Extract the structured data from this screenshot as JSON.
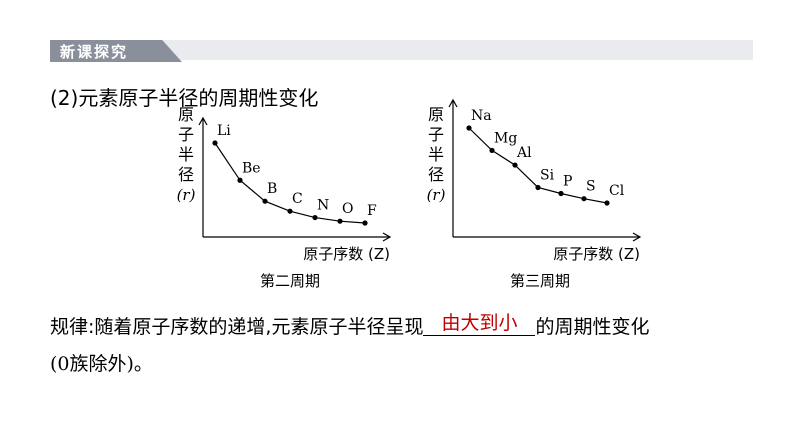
{
  "header": {
    "tag": "新课探究"
  },
  "subtitle": "(2)元素原子半径的周期性变化",
  "chart_data": [
    {
      "type": "line",
      "caption": "第二周期",
      "ylabel_chars": [
        "原",
        "子",
        "半",
        "径"
      ],
      "ylabel_var": "(r)",
      "xlabel": "原子序数 (Z)",
      "categories": [
        "Li",
        "Be",
        "B",
        "C",
        "N",
        "O",
        "F"
      ],
      "values": [
        152,
        111,
        88,
        77,
        70,
        66,
        64
      ],
      "ylim": [
        45,
        165
      ],
      "grid": false
    },
    {
      "type": "line",
      "caption": "第三周期",
      "ylabel_chars": [
        "原",
        "子",
        "半",
        "径"
      ],
      "ylabel_var": "(r)",
      "xlabel": "原子序数 (Z)",
      "categories": [
        "Na",
        "Mg",
        "Al",
        "Si",
        "P",
        "S",
        "Cl"
      ],
      "values": [
        186,
        160,
        143,
        117,
        110,
        104,
        99
      ],
      "ylim": [
        75,
        200
      ],
      "grid": false
    }
  ],
  "rule": {
    "prefix": "规律:随着原子序数的递增,元素原子半径呈现",
    "answer": "由大到小",
    "suffix": "的周期性变化"
  },
  "note": "(0族除外)。"
}
